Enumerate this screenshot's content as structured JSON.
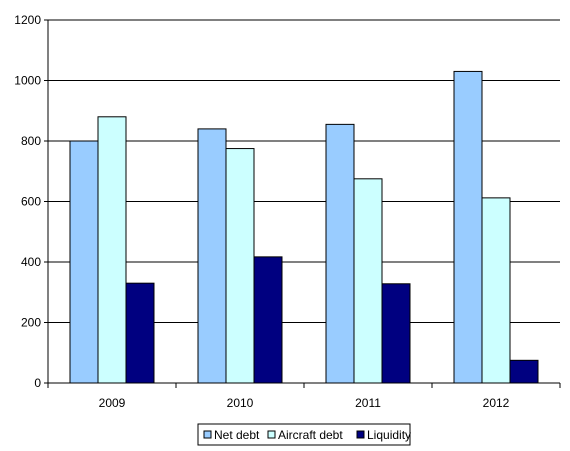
{
  "chart_data": {
    "type": "bar",
    "categories": [
      "2009",
      "2010",
      "2011",
      "2012"
    ],
    "series": [
      {
        "name": "Net debt",
        "color": "#99CCFF",
        "values": [
          800,
          840,
          855,
          1030
        ]
      },
      {
        "name": "Aircraft debt",
        "color": "#CCFFFF",
        "values": [
          880,
          775,
          675,
          612
        ]
      },
      {
        "name": "Liquidity",
        "color": "#000080",
        "values": [
          330,
          417,
          328,
          75
        ]
      }
    ],
    "yticks": [
      "0",
      "200",
      "400",
      "600",
      "800",
      "1000",
      "1200"
    ],
    "ylim": [
      0,
      1200
    ],
    "title": "",
    "xlabel": "",
    "ylabel": "",
    "grid": true,
    "legend_position": "bottom"
  }
}
